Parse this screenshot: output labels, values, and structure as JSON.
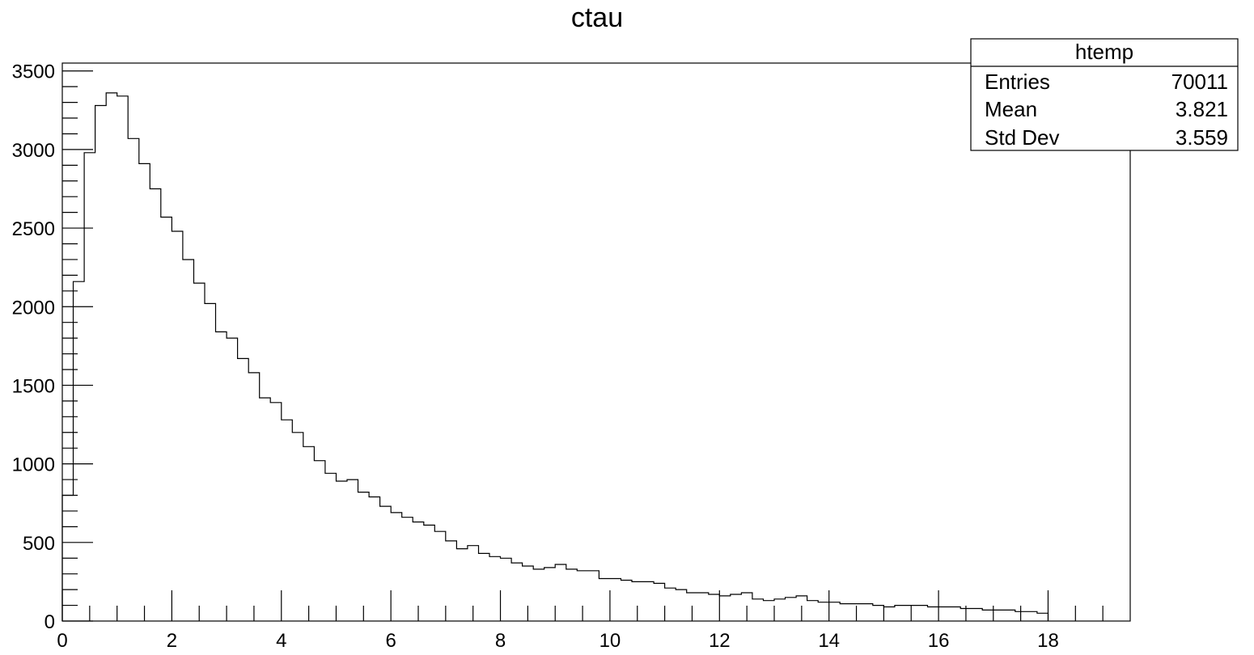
{
  "chart_data": {
    "type": "bar",
    "title": "ctau",
    "xlabel": "",
    "ylabel": "",
    "xlim": [
      0,
      19.5
    ],
    "ylim": [
      0,
      3550
    ],
    "bin_width": 0.2,
    "bin_start": 0.0,
    "x_ticks": [
      "0",
      "2",
      "4",
      "6",
      "8",
      "10",
      "12",
      "14",
      "16",
      "18"
    ],
    "y_ticks": [
      "0",
      "500",
      "1000",
      "1500",
      "2000",
      "2500",
      "3000",
      "3500"
    ],
    "grid": false,
    "series": [
      {
        "values": [
          800,
          2160,
          2980,
          3280,
          3360,
          3340,
          3070,
          2910,
          2750,
          2570,
          2480,
          2300,
          2150,
          2020,
          1840,
          1800,
          1670,
          1580,
          1420,
          1390,
          1280,
          1200,
          1110,
          1020,
          940,
          890,
          900,
          820,
          790,
          730,
          690,
          660,
          630,
          610,
          570,
          510,
          460,
          480,
          430,
          410,
          400,
          370,
          350,
          330,
          340,
          360,
          330,
          320,
          320,
          270,
          270,
          260,
          250,
          250,
          240,
          210,
          200,
          180,
          180,
          170,
          160,
          170,
          180,
          140,
          130,
          140,
          150,
          160,
          130,
          120,
          120,
          110,
          110,
          110,
          100,
          90,
          100,
          100,
          100,
          90,
          90,
          90,
          80,
          80,
          70,
          70,
          70,
          60,
          60,
          50
        ]
      }
    ]
  },
  "stats": {
    "title": "htemp",
    "rows": [
      {
        "label": "Entries",
        "value": "70011"
      },
      {
        "label": "Mean",
        "value": "3.821"
      },
      {
        "label": "Std Dev",
        "value": "3.559"
      }
    ]
  }
}
